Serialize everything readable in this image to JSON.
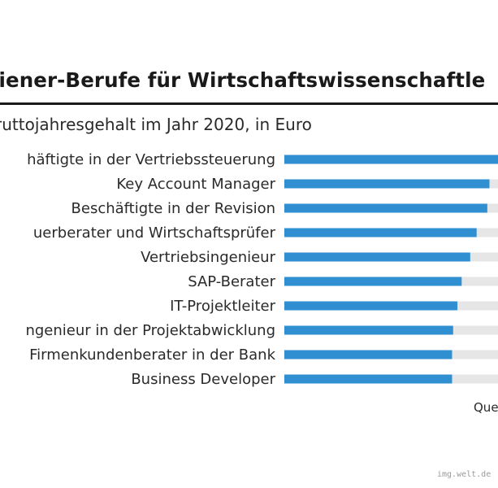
{
  "header": {
    "title": "liener-Berufe für Wirtschaftswissenschaftle",
    "subtitle": "ruttojahresgehalt im Jahr 2020, in Euro"
  },
  "source_label": "Que",
  "watermark": "img.welt.de",
  "colors": {
    "bar": "#2f8fd1",
    "track": "#e6e6e6",
    "text": "#1a1a1a"
  },
  "chart_data": {
    "type": "bar",
    "orientation": "horizontal",
    "categories": [
      "häftigte in der Vertriebssteuerung",
      "Key Account Manager",
      "Beschäftigte in der Revision",
      "uerberater und Wirtschaftsprüfer",
      "Vertriebsingenieur",
      "SAP-Berater",
      "IT-Projektleiter",
      "ngenieur in der Projektabwicklung",
      "Firmenkundenberater in der Bank",
      "Business Developer"
    ],
    "values": [
      100,
      96,
      95,
      90,
      87,
      83,
      81,
      79,
      78.5,
      78.5
    ],
    "value_unit": "percent of largest bar (values not printed)",
    "xlim": [
      0,
      100
    ],
    "grid": false,
    "legend": "none"
  }
}
